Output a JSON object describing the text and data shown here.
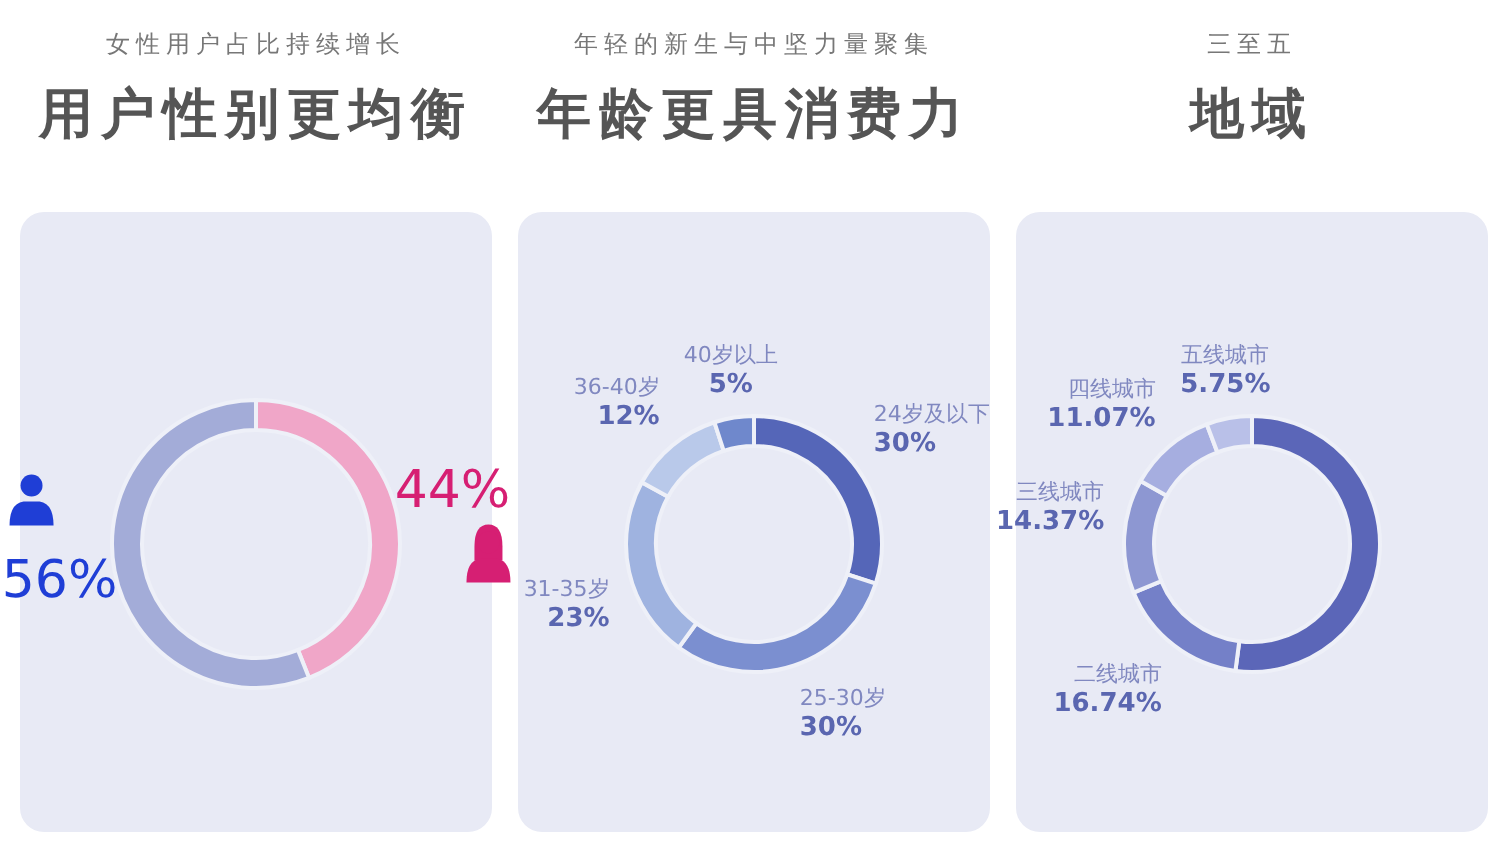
{
  "chart_data": [
    {
      "type": "donut",
      "subtitle": "女性用户占比持续增长",
      "title": "用户性别更均衡",
      "categories": [
        null,
        null
      ],
      "values": [
        44,
        56
      ],
      "colors": [
        "#f0a6c8",
        "#a3acd8"
      ],
      "value_labels": [
        "44%",
        "56%"
      ]
    },
    {
      "type": "donut",
      "subtitle": "年轻的新生与中坚力量聚集",
      "title": "年龄更具消费力",
      "categories": [
        "24岁及以下",
        "25-30岁",
        "31-35岁",
        "36-40岁",
        "40岁以上"
      ],
      "values": [
        30,
        30,
        23,
        12,
        5
      ],
      "colors": [
        "#5566b8",
        "#7b8fd0",
        "#9fb3e0",
        "#b9c9ea",
        "#6f88cc"
      ],
      "value_labels": [
        "30%",
        "30%",
        "23%",
        "12%",
        "5%"
      ]
    },
    {
      "type": "donut",
      "subtitle": "三至五",
      "title": "地域",
      "categories": [
        null,
        "二线城市",
        "三线城市",
        "四线城市",
        "五线城市"
      ],
      "values": [
        52.07,
        16.74,
        14.37,
        11.07,
        5.75
      ],
      "colors": [
        "#5b66b8",
        "#7480c8",
        "#8d97d2",
        "#a6aee0",
        "#b9c0e8"
      ],
      "value_labels": [
        null,
        "16.74%",
        "14.37%",
        "11.07%",
        "5.75%"
      ]
    }
  ]
}
